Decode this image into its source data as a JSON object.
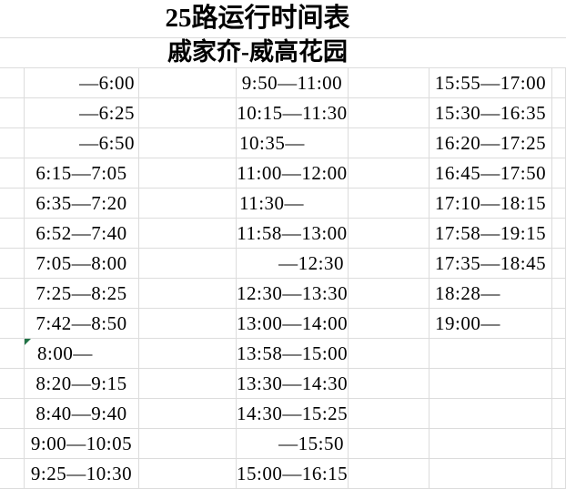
{
  "title": "25路运行时间表",
  "subtitle": "戚家夼-威高花园",
  "schedule": {
    "columns": [
      {
        "times": [
          "—6:00",
          "—6:25",
          "—6:50",
          "6:15—7:05",
          "6:35—7:20",
          "6:52—7:40",
          "7:05—8:00",
          "7:25—8:25",
          "7:42—8:50",
          "8:00—",
          "8:20—9:15",
          "8:40—9:40",
          "9:00—10:05",
          "9:25—10:30"
        ]
      },
      {
        "times": [
          "9:50—11:00",
          "10:15—11:30",
          "10:35—",
          "11:00—12:00",
          "11:30—",
          "11:58—13:00",
          "—12:30",
          "12:30—13:30",
          "13:00—14:00",
          "13:58—15:00",
          "13:30—14:30",
          "14:30—15:25",
          "—15:50",
          "15:00—16:15"
        ]
      },
      {
        "times": [
          "15:55—17:00",
          "15:30—16:35",
          "16:20—17:25",
          "16:45—17:50",
          "17:10—18:15",
          "17:58—19:15",
          "17:35—18:45",
          "18:28—",
          "19:00—",
          "",
          "",
          "",
          "",
          ""
        ]
      }
    ],
    "error_indicator": {
      "column_index": 0,
      "row_index": 9
    }
  },
  "colors": {
    "gridline": "#dcdcdc",
    "text": "#000000",
    "background": "#ffffff",
    "error_indicator_green": "#217346"
  }
}
